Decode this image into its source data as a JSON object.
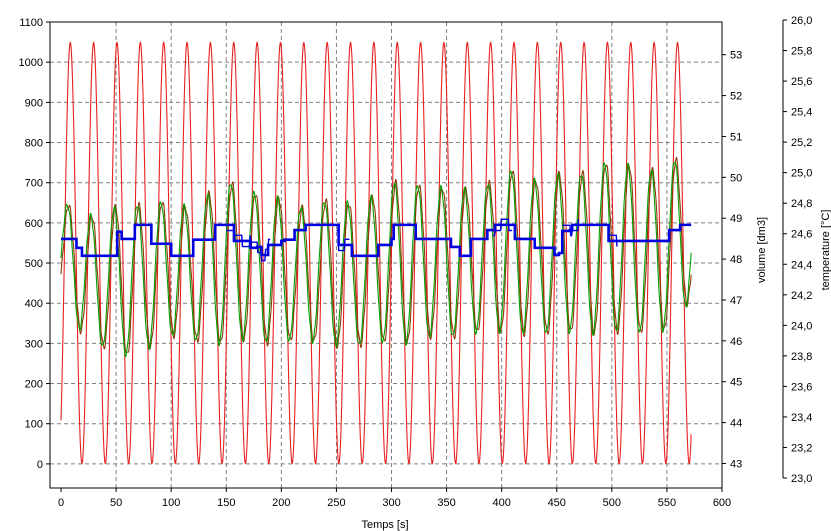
{
  "chart_data": {
    "type": "line",
    "title": "",
    "xlabel": "Temps [s]",
    "ylabel": "",
    "y2label": "volume [dm3]",
    "y3label": "temperature [°C]",
    "xlim": [
      -10,
      600
    ],
    "ylim": [
      -60,
      1100
    ],
    "y2lim": [
      42.4,
      53.8
    ],
    "y3lim": [
      22.9,
      26.05
    ],
    "grid": true,
    "x_ticks": [
      0,
      50,
      100,
      150,
      200,
      250,
      300,
      350,
      400,
      450,
      500,
      550,
      600
    ],
    "x_tick_labels": [
      "0",
      "50",
      "100",
      "150",
      "200",
      "250",
      "300",
      "350",
      "400",
      "450",
      "500",
      "550",
      "600"
    ],
    "y_ticks": [
      0,
      100,
      200,
      300,
      400,
      500,
      600,
      700,
      800,
      900,
      1000,
      1100
    ],
    "y_tick_labels": [
      "0",
      "100",
      "200",
      "300",
      "400",
      "500",
      "600",
      "700",
      "800",
      "900",
      "1000",
      "1100"
    ],
    "y2_ticks": [
      43,
      44,
      45,
      46,
      47,
      48,
      49,
      50,
      51,
      52,
      53
    ],
    "y2_tick_labels": [
      "43",
      "44",
      "45",
      "46",
      "47",
      "48",
      "49",
      "50",
      "51",
      "52",
      "53"
    ],
    "y3_ticks": [
      23.0,
      23.2,
      23.4,
      23.6,
      23.8,
      24.0,
      24.2,
      24.4,
      24.6,
      24.8,
      25.0,
      25.2,
      25.4,
      25.6,
      25.8,
      26.0
    ],
    "y3_tick_labels": [
      "23,0",
      "23,2",
      "23,4",
      "23,6",
      "23,8",
      "24,0",
      "24,2",
      "24,4",
      "24,6",
      "24,8",
      "25,0",
      "25,2",
      "25,4",
      "25,6",
      "25,8",
      "26,0"
    ],
    "colors": {
      "red": "#e82020",
      "green": "#00a000",
      "brown": "#8b3a0a",
      "blue": "#0000e0"
    },
    "series": [
      {
        "axis": "y2",
        "color": "red",
        "period": 21.2,
        "phase": 8.4,
        "min": 43,
        "max": 53.3,
        "x_range": [
          0,
          572
        ]
      },
      {
        "axis": "y",
        "color": "green",
        "period": 21.2,
        "phase": 0.5,
        "values": {
          "x": [
            0,
            10,
            20,
            30,
            40,
            50,
            60,
            70,
            80,
            90,
            100,
            110,
            120,
            130,
            140,
            150,
            160,
            170,
            180,
            190,
            200,
            210,
            220,
            230,
            240,
            250,
            260,
            270,
            280,
            290,
            300,
            310,
            320,
            330,
            340,
            350,
            360,
            370,
            380,
            390,
            400,
            410,
            420,
            430,
            440,
            450,
            460,
            470,
            480,
            490,
            500,
            510,
            520,
            530,
            540,
            550,
            560,
            570
          ],
          "max": [
            650,
            640,
            625,
            615,
            620,
            640,
            650,
            645,
            640,
            650,
            660,
            645,
            625,
            660,
            690,
            705,
            690,
            680,
            670,
            665,
            660,
            650,
            635,
            640,
            655,
            665,
            650,
            640,
            660,
            680,
            700,
            700,
            695,
            690,
            690,
            685,
            680,
            685,
            690,
            700,
            720,
            730,
            720,
            705,
            710,
            720,
            725,
            720,
            730,
            745,
            750,
            745,
            740,
            730,
            730,
            745,
            760,
            740
          ],
          "min": [
            410,
            370,
            320,
            300,
            290,
            280,
            270,
            270,
            290,
            310,
            320,
            320,
            310,
            300,
            300,
            300,
            310,
            310,
            305,
            300,
            300,
            310,
            310,
            305,
            300,
            295,
            290,
            295,
            300,
            305,
            300,
            300,
            305,
            315,
            320,
            320,
            315,
            320,
            330,
            330,
            330,
            330,
            325,
            325,
            325,
            330,
            330,
            325,
            325,
            325,
            330,
            330,
            325,
            330,
            330,
            335,
            340,
            410
          ]
        }
      },
      {
        "axis": "y3",
        "color": "brown",
        "note": "",
        "offset": 0
      },
      {
        "axis": "y",
        "color": "blue",
        "steps": [
          [
            0,
            560
          ],
          [
            13,
            560
          ],
          [
            14,
            538
          ],
          [
            17,
            538
          ],
          [
            19,
            518
          ],
          [
            50,
            518
          ],
          [
            51,
            578
          ],
          [
            55,
            560
          ],
          [
            66,
            560
          ],
          [
            67,
            595
          ],
          [
            80,
            595
          ],
          [
            82,
            548
          ],
          [
            98,
            548
          ],
          [
            100,
            518
          ],
          [
            118,
            518
          ],
          [
            120,
            558
          ],
          [
            138,
            558
          ],
          [
            140,
            595
          ],
          [
            155,
            595
          ],
          [
            157,
            555
          ],
          [
            168,
            555
          ],
          [
            172,
            538
          ],
          [
            178,
            540
          ],
          [
            182,
            520
          ],
          [
            188,
            545
          ],
          [
            200,
            555
          ],
          [
            203,
            558
          ],
          [
            210,
            558
          ],
          [
            212,
            582
          ],
          [
            220,
            582
          ],
          [
            222,
            595
          ],
          [
            250,
            595
          ],
          [
            252,
            545
          ],
          [
            262,
            545
          ],
          [
            264,
            518
          ],
          [
            286,
            518
          ],
          [
            288,
            545
          ],
          [
            298,
            545
          ],
          [
            300,
            560
          ],
          [
            302,
            595
          ],
          [
            320,
            595
          ],
          [
            322,
            560
          ],
          [
            352,
            560
          ],
          [
            354,
            540
          ],
          [
            360,
            540
          ],
          [
            362,
            518
          ],
          [
            370,
            518
          ],
          [
            372,
            560
          ],
          [
            385,
            560
          ],
          [
            387,
            582
          ],
          [
            392,
            582
          ],
          [
            394,
            595
          ],
          [
            410,
            595
          ],
          [
            412,
            560
          ],
          [
            427,
            560
          ],
          [
            430,
            538
          ],
          [
            446,
            538
          ],
          [
            448,
            520
          ],
          [
            452,
            525
          ],
          [
            455,
            580
          ],
          [
            462,
            582
          ],
          [
            464,
            595
          ],
          [
            495,
            595
          ],
          [
            497,
            555
          ],
          [
            550,
            555
          ],
          [
            552,
            582
          ],
          [
            560,
            582
          ],
          [
            562,
            595
          ],
          [
            572,
            595
          ]
        ],
        "noisy_ranges": [
          [
            150,
            190
          ],
          [
            250,
            262
          ],
          [
            392,
            410
          ],
          [
            455,
            470
          ],
          [
            497,
            505
          ]
        ]
      }
    ]
  }
}
